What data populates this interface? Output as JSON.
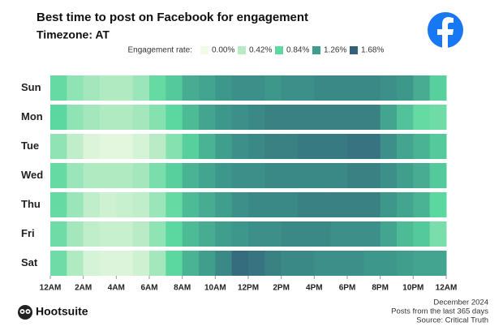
{
  "chart_data": {
    "type": "heatmap",
    "title": "Best time to post on Facebook for engagement",
    "subtitle": "Timezone: AT",
    "y_categories": [
      "Sun",
      "Mon",
      "Tue",
      "Wed",
      "Thu",
      "Fri",
      "Sat"
    ],
    "xlim": [
      0,
      24
    ],
    "xticks": [
      {
        "value": 0,
        "label": "12AM"
      },
      {
        "value": 2,
        "label": "2AM"
      },
      {
        "value": 4,
        "label": "4AM"
      },
      {
        "value": 6,
        "label": "6AM"
      },
      {
        "value": 8,
        "label": "8AM"
      },
      {
        "value": 10,
        "label": "10AM"
      },
      {
        "value": 12,
        "label": "12PM"
      },
      {
        "value": 14,
        "label": "2PM"
      },
      {
        "value": 16,
        "label": "4PM"
      },
      {
        "value": 18,
        "label": "6PM"
      },
      {
        "value": 20,
        "label": "8PM"
      },
      {
        "value": 22,
        "label": "10PM"
      },
      {
        "value": 24,
        "label": "12AM"
      }
    ],
    "color_scale": {
      "label": "Engagement rate:",
      "stops": [
        {
          "value": 0,
          "label": "0.00%",
          "color": "#f1fbe6"
        },
        {
          "value": 0.42,
          "label": "0.42%",
          "color": "#b6ebc4"
        },
        {
          "value": 0.84,
          "label": "0.84%",
          "color": "#5cd8a0"
        },
        {
          "value": 1.26,
          "label": "1.26%",
          "color": "#3f9d8d"
        },
        {
          "value": 1.68,
          "label": "1.68%",
          "color": "#33607a"
        }
      ]
    },
    "values": [
      [
        0.8,
        0.6,
        0.5,
        0.45,
        0.45,
        0.55,
        0.8,
        0.95,
        1.15,
        1.2,
        1.3,
        1.35,
        1.35,
        1.3,
        1.35,
        1.35,
        1.4,
        1.4,
        1.4,
        1.4,
        1.35,
        1.3,
        1.15,
        0.9
      ],
      [
        0.85,
        0.6,
        0.5,
        0.45,
        0.45,
        0.5,
        0.65,
        0.85,
        1.05,
        1.2,
        1.3,
        1.35,
        1.4,
        1.45,
        1.45,
        1.45,
        1.45,
        1.45,
        1.45,
        1.45,
        1.2,
        1.0,
        0.8,
        0.75
      ],
      [
        0.6,
        0.35,
        0.15,
        0.1,
        0.1,
        0.2,
        0.4,
        0.65,
        0.9,
        1.1,
        1.25,
        1.35,
        1.4,
        1.45,
        1.45,
        1.5,
        1.5,
        1.5,
        1.55,
        1.55,
        1.35,
        1.2,
        1.1,
        0.95
      ],
      [
        0.8,
        0.55,
        0.45,
        0.45,
        0.45,
        0.5,
        0.7,
        0.9,
        1.1,
        1.2,
        1.3,
        1.35,
        1.35,
        1.4,
        1.4,
        1.4,
        1.4,
        1.4,
        1.45,
        1.45,
        1.35,
        1.25,
        1.15,
        0.95
      ],
      [
        0.8,
        0.55,
        0.35,
        0.25,
        0.3,
        0.35,
        0.55,
        0.8,
        1.05,
        1.15,
        1.25,
        1.35,
        1.4,
        1.4,
        1.4,
        1.45,
        1.45,
        1.45,
        1.45,
        1.45,
        1.3,
        1.2,
        1.1,
        0.85
      ],
      [
        0.75,
        0.5,
        0.35,
        0.3,
        0.3,
        0.4,
        0.6,
        0.85,
        1.05,
        1.15,
        1.25,
        1.3,
        1.35,
        1.35,
        1.4,
        1.4,
        1.4,
        1.35,
        1.35,
        1.35,
        1.2,
        1.05,
        0.95,
        0.7
      ],
      [
        0.75,
        0.45,
        0.2,
        0.15,
        0.15,
        0.25,
        0.5,
        0.85,
        1.1,
        1.25,
        1.4,
        1.6,
        1.55,
        1.45,
        1.4,
        1.4,
        1.35,
        1.35,
        1.35,
        1.3,
        1.3,
        1.25,
        1.2,
        1.2
      ]
    ],
    "footnotes": [
      "December 2024",
      "Posts from the last 365 days",
      "Source: Critical Truth"
    ],
    "brand": "Hootsuite"
  }
}
